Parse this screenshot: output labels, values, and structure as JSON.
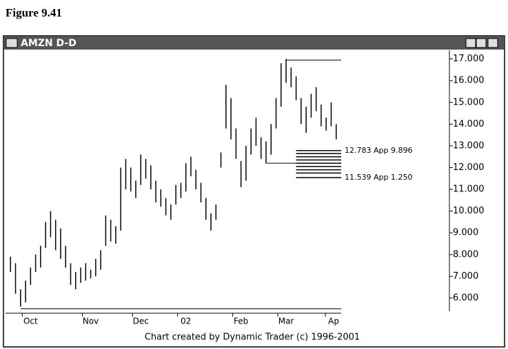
{
  "figure_label": "Figure 9.41",
  "chart_data": {
    "type": "ohlc",
    "window_title": "AMZN D-D",
    "credit": "Chart created by Dynamic Trader (c) 1996-2001",
    "x": [
      0,
      1,
      2,
      3,
      4,
      5,
      6,
      7,
      8,
      9,
      10,
      11,
      12,
      13,
      14,
      15,
      16,
      17,
      18,
      19,
      20,
      21,
      22,
      23,
      24,
      25,
      26,
      27,
      28,
      29,
      30,
      31,
      32,
      33,
      34,
      35,
      36,
      37,
      38,
      39,
      40,
      41,
      42,
      43,
      44,
      45,
      46,
      47,
      48,
      49,
      50,
      51,
      52,
      53,
      54,
      55,
      56,
      57,
      58,
      59,
      60,
      61,
      62,
      63,
      64,
      65
    ],
    "high": [
      7.9,
      7.6,
      6.4,
      6.8,
      7.4,
      8.0,
      8.4,
      9.5,
      10.0,
      9.6,
      9.2,
      8.4,
      7.6,
      7.2,
      7.4,
      7.6,
      7.3,
      7.8,
      8.2,
      9.8,
      9.6,
      9.3,
      12.0,
      12.4,
      12.0,
      11.4,
      12.6,
      12.4,
      12.1,
      11.4,
      11.0,
      10.6,
      10.3,
      11.2,
      11.3,
      12.2,
      12.5,
      11.9,
      11.3,
      10.6,
      9.9,
      10.3,
      12.7,
      15.8,
      15.2,
      13.8,
      12.3,
      13.0,
      13.8,
      14.3,
      13.4,
      13.2,
      14.0,
      15.2,
      16.8,
      17.0,
      16.6,
      16.2,
      15.2,
      14.8,
      15.4,
      15.7,
      14.9,
      14.3,
      15.0,
      14.0
    ],
    "low": [
      7.2,
      6.2,
      5.6,
      5.8,
      6.6,
      7.2,
      7.4,
      8.3,
      8.8,
      8.2,
      7.8,
      7.4,
      6.6,
      6.4,
      6.7,
      6.8,
      6.9,
      7.0,
      7.3,
      8.4,
      8.6,
      8.5,
      9.1,
      11.0,
      10.9,
      10.6,
      11.2,
      11.5,
      11.0,
      10.4,
      10.2,
      9.8,
      9.6,
      10.3,
      10.6,
      10.9,
      11.6,
      11.0,
      10.4,
      9.6,
      9.1,
      9.6,
      12.0,
      13.8,
      13.3,
      12.4,
      11.1,
      11.4,
      12.6,
      13.0,
      12.4,
      12.2,
      12.6,
      13.8,
      14.8,
      15.9,
      15.7,
      15.1,
      14.0,
      13.6,
      14.3,
      14.6,
      13.9,
      13.7,
      13.9,
      13.3
    ],
    "color": "#000000",
    "hlines": [
      {
        "value": 5.5,
        "from": 2
      },
      {
        "value": 16.95,
        "from": 55
      },
      {
        "value": 12.2,
        "from": 51
      }
    ],
    "projections": [
      {
        "value": 12.783,
        "label": "12.783 App 9.896"
      },
      {
        "value": 12.65
      },
      {
        "value": 12.5
      },
      {
        "value": 12.35
      },
      {
        "value": 12.2
      },
      {
        "value": 12.05
      },
      {
        "value": 11.9
      },
      {
        "value": 11.75
      },
      {
        "value": 11.539,
        "label": "11.539 App 1.250"
      }
    ],
    "projection_from": 57,
    "xlim": [
      -1,
      66
    ],
    "xticks": [
      {
        "value": 4,
        "label": "Oct"
      },
      {
        "value": 16,
        "label": "Nov"
      },
      {
        "value": 26,
        "label": "Dec"
      },
      {
        "value": 35,
        "label": "02"
      },
      {
        "value": 46,
        "label": "Feb"
      },
      {
        "value": 55,
        "label": "Mar"
      },
      {
        "value": 64.5,
        "label": "Ap"
      }
    ],
    "ylim": [
      5.3,
      17.4
    ],
    "yticks": [
      {
        "value": 6,
        "label": "6.000"
      },
      {
        "value": 7,
        "label": "7.000"
      },
      {
        "value": 8,
        "label": "8.000"
      },
      {
        "value": 9,
        "label": "9.000"
      },
      {
        "value": 10,
        "label": "10.000"
      },
      {
        "value": 11,
        "label": "11.000"
      },
      {
        "value": 12,
        "label": "12.000"
      },
      {
        "value": 13,
        "label": "13.000"
      },
      {
        "value": 14,
        "label": "14.000"
      },
      {
        "value": 15,
        "label": "15.000"
      },
      {
        "value": 16,
        "label": "16.000"
      },
      {
        "value": 17,
        "label": "17.000"
      }
    ]
  }
}
